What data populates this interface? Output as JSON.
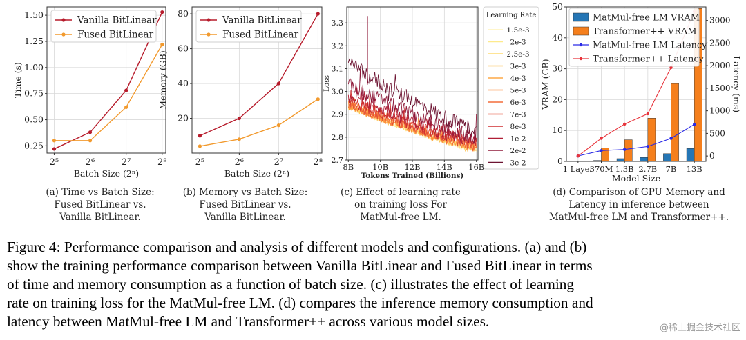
{
  "chart_data": [
    {
      "id": "a",
      "type": "line",
      "xlabel": "Batch Size (2ⁿ)",
      "ylabel": "Time (s)",
      "x": [
        5,
        6,
        7,
        8
      ],
      "x_ticks": [
        5,
        6,
        7,
        8
      ],
      "x_tick_labels": [
        "2⁵",
        "2⁶",
        "2⁷",
        "2⁸"
      ],
      "xlim": [
        4.8,
        8.1
      ],
      "ylim": [
        0.18,
        1.58
      ],
      "y_ticks": [
        0.25,
        0.5,
        0.75,
        1.0,
        1.25,
        1.5
      ],
      "y_tick_labels": [
        "0.25",
        "0.50",
        "0.75",
        "1.00",
        "1.25",
        "1.50"
      ],
      "legend": "top-left",
      "grid": true,
      "series": [
        {
          "name": "Vanilla BitLinear",
          "color": "#b71c2c",
          "values": [
            0.22,
            0.38,
            0.78,
            1.53
          ]
        },
        {
          "name": "Fused BitLinear",
          "color": "#f29a2e",
          "values": [
            0.3,
            0.3,
            0.62,
            1.22
          ]
        }
      ],
      "caption": [
        "(a) Time vs Batch Size:",
        "Fused BitLinear vs.",
        "Vanilla BitLinear."
      ]
    },
    {
      "id": "b",
      "type": "line",
      "xlabel": "Batch Size (2ⁿ)",
      "ylabel": "Memory (GB)",
      "x": [
        5,
        6,
        7,
        8
      ],
      "x_ticks": [
        5,
        6,
        7,
        8
      ],
      "x_tick_labels": [
        "2⁵",
        "2⁶",
        "2⁷",
        "2⁸"
      ],
      "xlim": [
        4.8,
        8.1
      ],
      "ylim": [
        0,
        84
      ],
      "y_ticks": [
        20,
        40,
        60,
        80
      ],
      "y_tick_labels": [
        "20",
        "40",
        "60",
        "80"
      ],
      "legend": "top-left",
      "grid": true,
      "series": [
        {
          "name": "Vanilla BitLinear",
          "color": "#b71c2c",
          "values": [
            10,
            20,
            40,
            80
          ]
        },
        {
          "name": "Fused BitLinear",
          "color": "#f29a2e",
          "values": [
            4,
            8,
            16,
            31
          ]
        }
      ],
      "caption": [
        "(b) Memory vs Batch Size:",
        "Fused BitLinear vs.",
        "Vanilla BitLinear."
      ]
    },
    {
      "id": "c",
      "type": "line",
      "xlabel": "Tokens Trained (Billions)",
      "ylabel": "Loss",
      "xlim": [
        7.9,
        16.1
      ],
      "x_ticks": [
        8,
        10,
        12,
        14,
        16
      ],
      "x_tick_labels": [
        "8B",
        "10B",
        "12B",
        "14B",
        "16B"
      ],
      "ylim": [
        2.7,
        3.37
      ],
      "y_ticks": [
        2.7,
        2.8,
        2.9,
        3.0,
        3.1,
        3.2,
        3.3
      ],
      "y_tick_labels": [
        "2.7",
        "2.8",
        "2.9",
        "3.0",
        "3.1",
        "3.2",
        "3.3"
      ],
      "grid": true,
      "legend_title": "Learning Rate",
      "legend": "right",
      "series": [
        {
          "name": "1.5e-3",
          "color": "#fff4b8",
          "start": 2.93,
          "end": 2.74
        },
        {
          "name": "2e-3",
          "color": "#feea8c",
          "start": 2.93,
          "end": 2.745
        },
        {
          "name": "2.5e-3",
          "color": "#fedc72",
          "start": 2.935,
          "end": 2.75
        },
        {
          "name": "3e-3",
          "color": "#fec45a",
          "start": 2.935,
          "end": 2.75
        },
        {
          "name": "4e-3",
          "color": "#fda947",
          "start": 2.94,
          "end": 2.755
        },
        {
          "name": "5e-3",
          "color": "#fb8d3c",
          "start": 2.94,
          "end": 2.755
        },
        {
          "name": "6e-3",
          "color": "#f46d3a",
          "start": 2.945,
          "end": 2.76
        },
        {
          "name": "7e-3",
          "color": "#e54e35",
          "start": 2.95,
          "end": 2.76
        },
        {
          "name": "8e-3",
          "color": "#cf2f30",
          "start": 2.96,
          "end": 2.77
        },
        {
          "name": "1e-2",
          "color": "#b01e36",
          "start": 2.99,
          "end": 2.78
        },
        {
          "name": "2e-2",
          "color": "#8f1a3a",
          "start": 3.03,
          "end": 2.8
        },
        {
          "name": "3e-2",
          "color": "#6d1432",
          "start": 3.12,
          "end": 2.83
        }
      ],
      "caption": [
        "(c) Effect of learning rate",
        "on training loss For",
        "MatMul-free LM."
      ]
    },
    {
      "id": "d",
      "type": "bar",
      "xlabel": "Model Size",
      "ylabel": "VRAM (GB)",
      "ylabel_right": "Latency (ms)",
      "categories": [
        "1 Layer",
        "370M",
        "1.3B",
        "2.7B",
        "7B",
        "13B"
      ],
      "ylim": [
        0,
        50
      ],
      "y_ticks": [
        0,
        10,
        20,
        30,
        40,
        50
      ],
      "y_tick_labels": [
        "0",
        "10",
        "20",
        "30",
        "40",
        "50"
      ],
      "ylim_right": [
        -120,
        3300
      ],
      "y_ticks_right": [
        0,
        500,
        1000,
        1500,
        2000,
        2500,
        3000
      ],
      "y_tick_labels_right": [
        "0",
        "500",
        "1000",
        "1500",
        "2000",
        "2500",
        "3000"
      ],
      "legend": "top-left",
      "grid": true,
      "series": [
        {
          "name": "MatMul-free LM VRAM",
          "kind": "bar",
          "axis": "left",
          "color": "#2576b5",
          "values": [
            0.1,
            0.3,
            0.9,
            1.3,
            2.5,
            4.2
          ]
        },
        {
          "name": "Transformer++ VRAM",
          "kind": "bar",
          "axis": "left",
          "color": "#f57f1c",
          "values": [
            0.1,
            4.4,
            7.0,
            14.0,
            25.2,
            49.5
          ]
        },
        {
          "name": "MatMul-free LM Latency",
          "kind": "line",
          "axis": "right",
          "color": "#2a2ae6",
          "values": [
            0,
            120,
            145,
            210,
            390,
            700
          ]
        },
        {
          "name": "Transformer++ Latency",
          "kind": "line",
          "axis": "right",
          "color": "#e8333b",
          "values": [
            0,
            390,
            705,
            935,
            1960,
            3200
          ]
        }
      ],
      "caption": [
        "(d) Comparison of GPU Memory and",
        "Latency in inference between",
        "MatMul-free LM and Transformer++."
      ]
    }
  ],
  "figure_caption": [
    "Figure 4: Performance comparison and analysis of different models and configurations. (a) and (b)",
    "show the training performance comparison between Vanilla BitLinear and Fused BitLinear in terms",
    "of time and memory consumption as a function of batch size. (c) illustrates the effect of learning",
    "rate on training loss for the MatMul-free LM. (d) compares the inference memory consumption and",
    "latency between MatMul-free LM and Transformer++ across various model sizes."
  ],
  "watermark": "@稀土掘金技术社区"
}
